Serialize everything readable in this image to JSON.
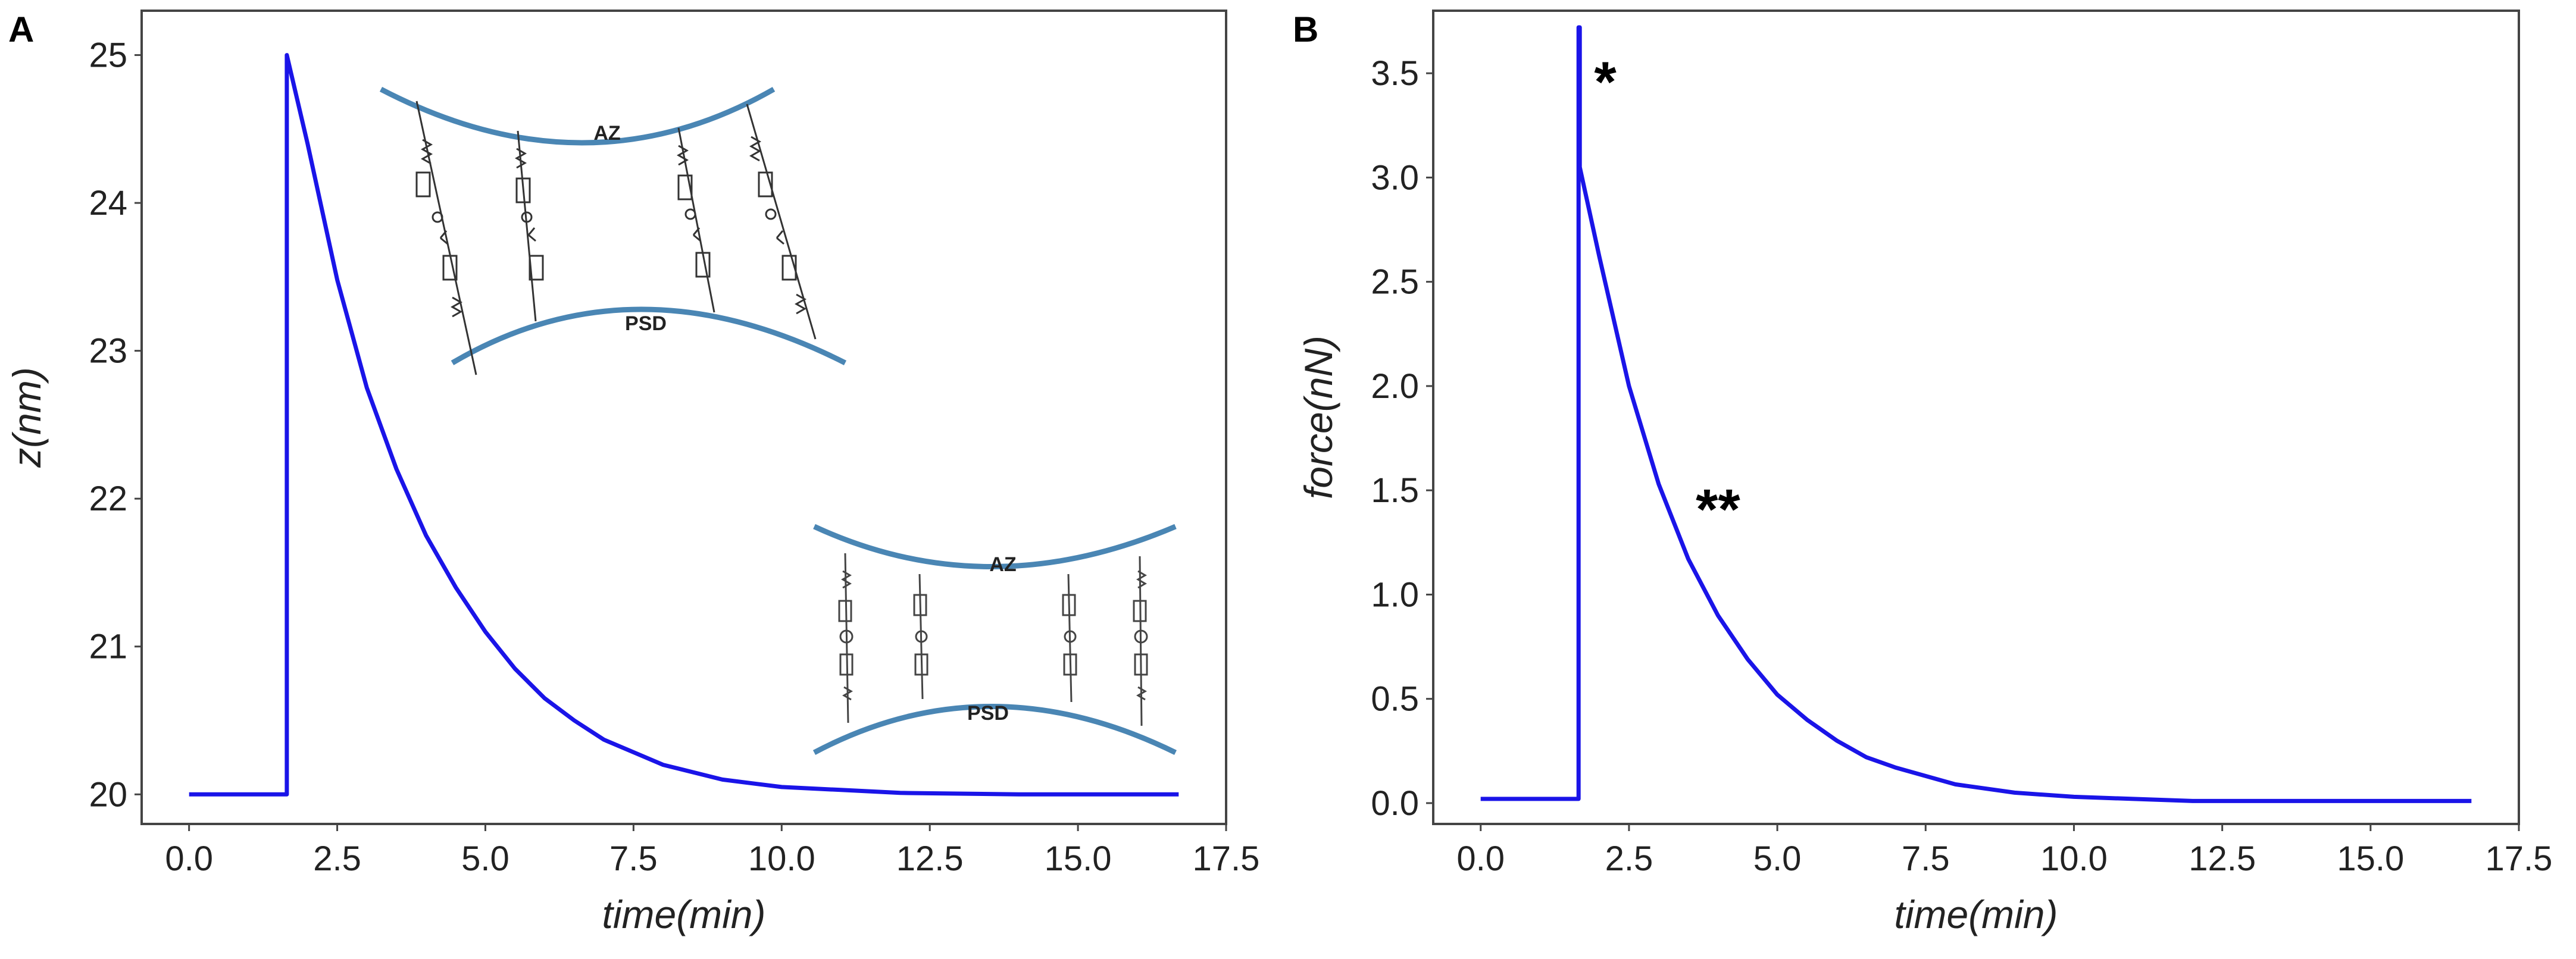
{
  "panels": {
    "a": {
      "letter": "A"
    },
    "b": {
      "letter": "B"
    }
  },
  "inset_labels": {
    "top_az": "AZ",
    "top_psd": "PSD",
    "bottom_az": "AZ",
    "bottom_psd": "PSD"
  },
  "colors": {
    "curve": "#1a14e8",
    "membrane": "#4a86b4",
    "frame": "#444444"
  },
  "chart_data": [
    {
      "type": "line",
      "panel": "A",
      "title": "",
      "xlabel": "time(min)",
      "ylabel": "z(nm)",
      "xlim": [
        -0.8,
        17.5
      ],
      "ylim": [
        19.8,
        25.3
      ],
      "xticks": [
        "0.0",
        "2.5",
        "5.0",
        "7.5",
        "10.0",
        "12.5",
        "15.0",
        "17.5"
      ],
      "xtick_values": [
        0,
        2.5,
        5,
        7.5,
        10,
        12.5,
        15,
        17.5
      ],
      "yticks": [
        "20",
        "21",
        "22",
        "23",
        "24",
        "25"
      ],
      "ytick_values": [
        20,
        21,
        22,
        23,
        24,
        25
      ],
      "series": [
        {
          "name": "z",
          "x": [
            0,
            1.65,
            1.65,
            2.0,
            2.5,
            3.0,
            3.5,
            4.0,
            4.5,
            5.0,
            5.5,
            6.0,
            6.5,
            7.0,
            8.0,
            9.0,
            10.0,
            11.0,
            12.0,
            14.0,
            16.7
          ],
          "y": [
            20.0,
            20.0,
            25.0,
            24.4,
            23.48,
            22.75,
            22.2,
            21.75,
            21.4,
            21.1,
            20.85,
            20.65,
            20.5,
            20.37,
            20.2,
            20.1,
            20.05,
            20.03,
            20.01,
            20.0,
            20.0
          ]
        }
      ]
    },
    {
      "type": "line",
      "panel": "B",
      "title": "",
      "xlabel": "time(min)",
      "ylabel": "force(nN)",
      "xlim": [
        -0.8,
        17.5
      ],
      "ylim": [
        -0.1,
        3.8
      ],
      "xticks": [
        "0.0",
        "2.5",
        "5.0",
        "7.5",
        "10.0",
        "12.5",
        "15.0",
        "17.5"
      ],
      "xtick_values": [
        0,
        2.5,
        5,
        7.5,
        10,
        12.5,
        15,
        17.5
      ],
      "yticks": [
        "0.0",
        "0.5",
        "1.0",
        "1.5",
        "2.0",
        "2.5",
        "3.0",
        "3.5"
      ],
      "ytick_values": [
        0,
        0.5,
        1,
        1.5,
        2,
        2.5,
        3,
        3.5
      ],
      "annotations": [
        {
          "text": "*",
          "x": 2.1,
          "y": 3.45
        },
        {
          "text": "**",
          "x": 4.0,
          "y": 1.4
        }
      ],
      "series": [
        {
          "name": "force",
          "x": [
            0,
            1.65,
            1.65,
            1.67,
            1.67,
            2.0,
            2.5,
            3.0,
            3.5,
            4.0,
            4.5,
            5.0,
            5.5,
            6.0,
            6.5,
            7.0,
            8.0,
            9.0,
            10.0,
            11.0,
            12.0,
            14.0,
            16.7
          ],
          "y": [
            0.02,
            0.02,
            3.72,
            3.72,
            3.05,
            2.62,
            2.0,
            1.53,
            1.17,
            0.9,
            0.69,
            0.52,
            0.4,
            0.3,
            0.22,
            0.17,
            0.09,
            0.05,
            0.03,
            0.02,
            0.01,
            0.01,
            0.01
          ]
        }
      ]
    }
  ]
}
